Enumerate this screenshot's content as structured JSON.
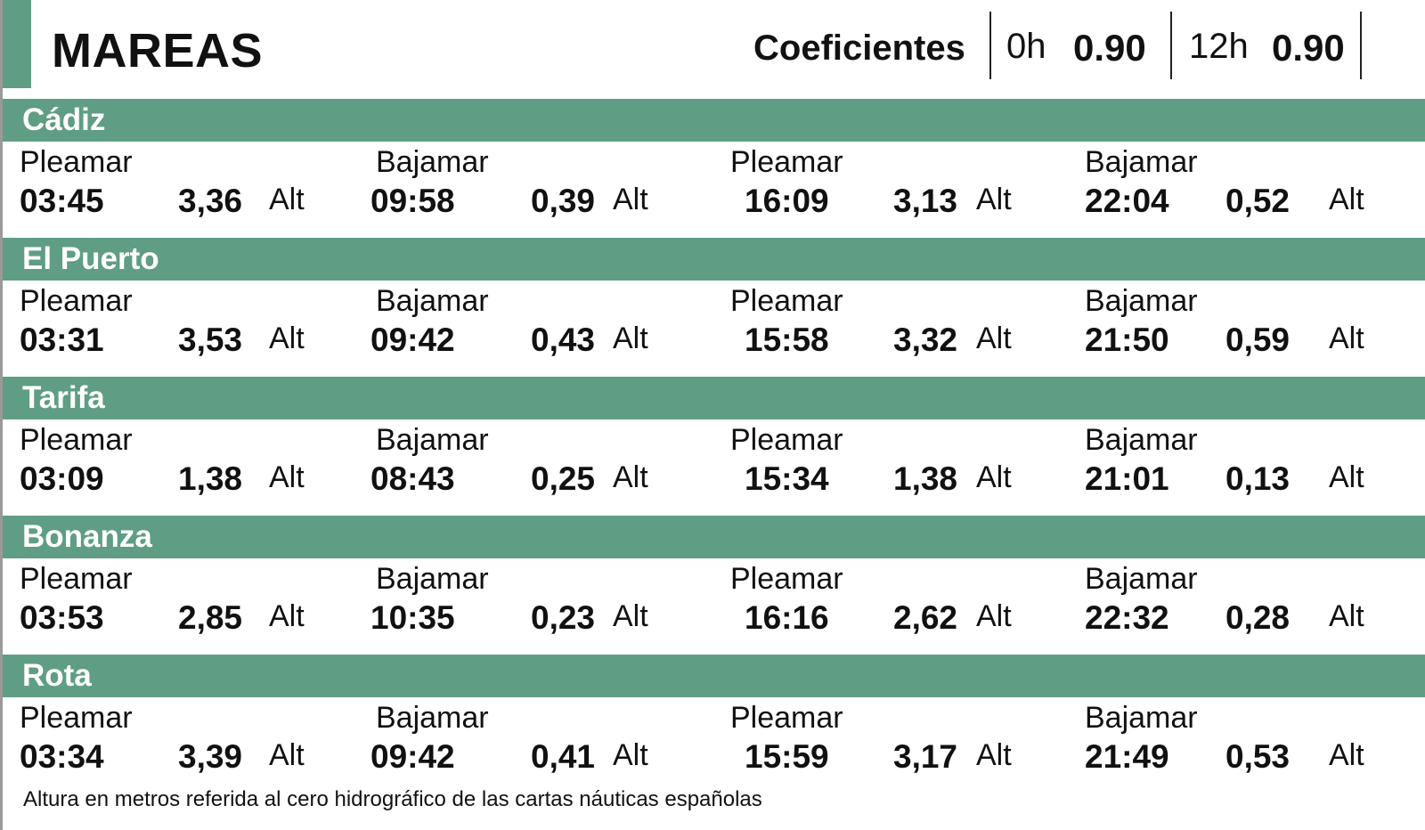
{
  "header": {
    "title": "MAREAS",
    "coef_label": "Coeficientes",
    "coefs": [
      {
        "hour": "0h",
        "value": "0.90"
      },
      {
        "hour": "12h",
        "value": "0.90"
      }
    ]
  },
  "accent_color": "#5f9e84",
  "ports": [
    {
      "name": "Cádiz",
      "tides": [
        {
          "type": "Pleamar",
          "time": "03:45",
          "height": "3,36",
          "unit": "Alt"
        },
        {
          "type": "Bajamar",
          "time": "09:58",
          "height": "0,39",
          "unit": "Alt"
        },
        {
          "type": "Pleamar",
          "time": "16:09",
          "height": "3,13",
          "unit": "Alt"
        },
        {
          "type": "Bajamar",
          "time": "22:04",
          "height": "0,52",
          "unit": "Alt"
        }
      ]
    },
    {
      "name": "El Puerto",
      "tides": [
        {
          "type": "Pleamar",
          "time": "03:31",
          "height": "3,53",
          "unit": "Alt"
        },
        {
          "type": "Bajamar",
          "time": "09:42",
          "height": "0,43",
          "unit": "Alt"
        },
        {
          "type": "Pleamar",
          "time": "15:58",
          "height": "3,32",
          "unit": "Alt"
        },
        {
          "type": "Bajamar",
          "time": "21:50",
          "height": "0,59",
          "unit": "Alt"
        }
      ]
    },
    {
      "name": "Tarifa",
      "tides": [
        {
          "type": "Pleamar",
          "time": "03:09",
          "height": "1,38",
          "unit": "Alt"
        },
        {
          "type": "Bajamar",
          "time": "08:43",
          "height": "0,25",
          "unit": "Alt"
        },
        {
          "type": "Pleamar",
          "time": "15:34",
          "height": "1,38",
          "unit": "Alt"
        },
        {
          "type": "Bajamar",
          "time": "21:01",
          "height": "0,13",
          "unit": "Alt"
        }
      ]
    },
    {
      "name": "Bonanza",
      "tides": [
        {
          "type": "Pleamar",
          "time": "03:53",
          "height": "2,85",
          "unit": "Alt"
        },
        {
          "type": "Bajamar",
          "time": "10:35",
          "height": "0,23",
          "unit": "Alt"
        },
        {
          "type": "Pleamar",
          "time": "16:16",
          "height": "2,62",
          "unit": "Alt"
        },
        {
          "type": "Bajamar",
          "time": "22:32",
          "height": "0,28",
          "unit": "Alt"
        }
      ]
    },
    {
      "name": "Rota",
      "tides": [
        {
          "type": "Pleamar",
          "time": "03:34",
          "height": "3,39",
          "unit": "Alt"
        },
        {
          "type": "Bajamar",
          "time": "09:42",
          "height": "0,41",
          "unit": "Alt"
        },
        {
          "type": "Pleamar",
          "time": "15:59",
          "height": "3,17",
          "unit": "Alt"
        },
        {
          "type": "Bajamar",
          "time": "21:49",
          "height": "0,53",
          "unit": "Alt"
        }
      ]
    }
  ],
  "footer": "Altura en metros referida al cero hidrográfico de las cartas náuticas españolas"
}
